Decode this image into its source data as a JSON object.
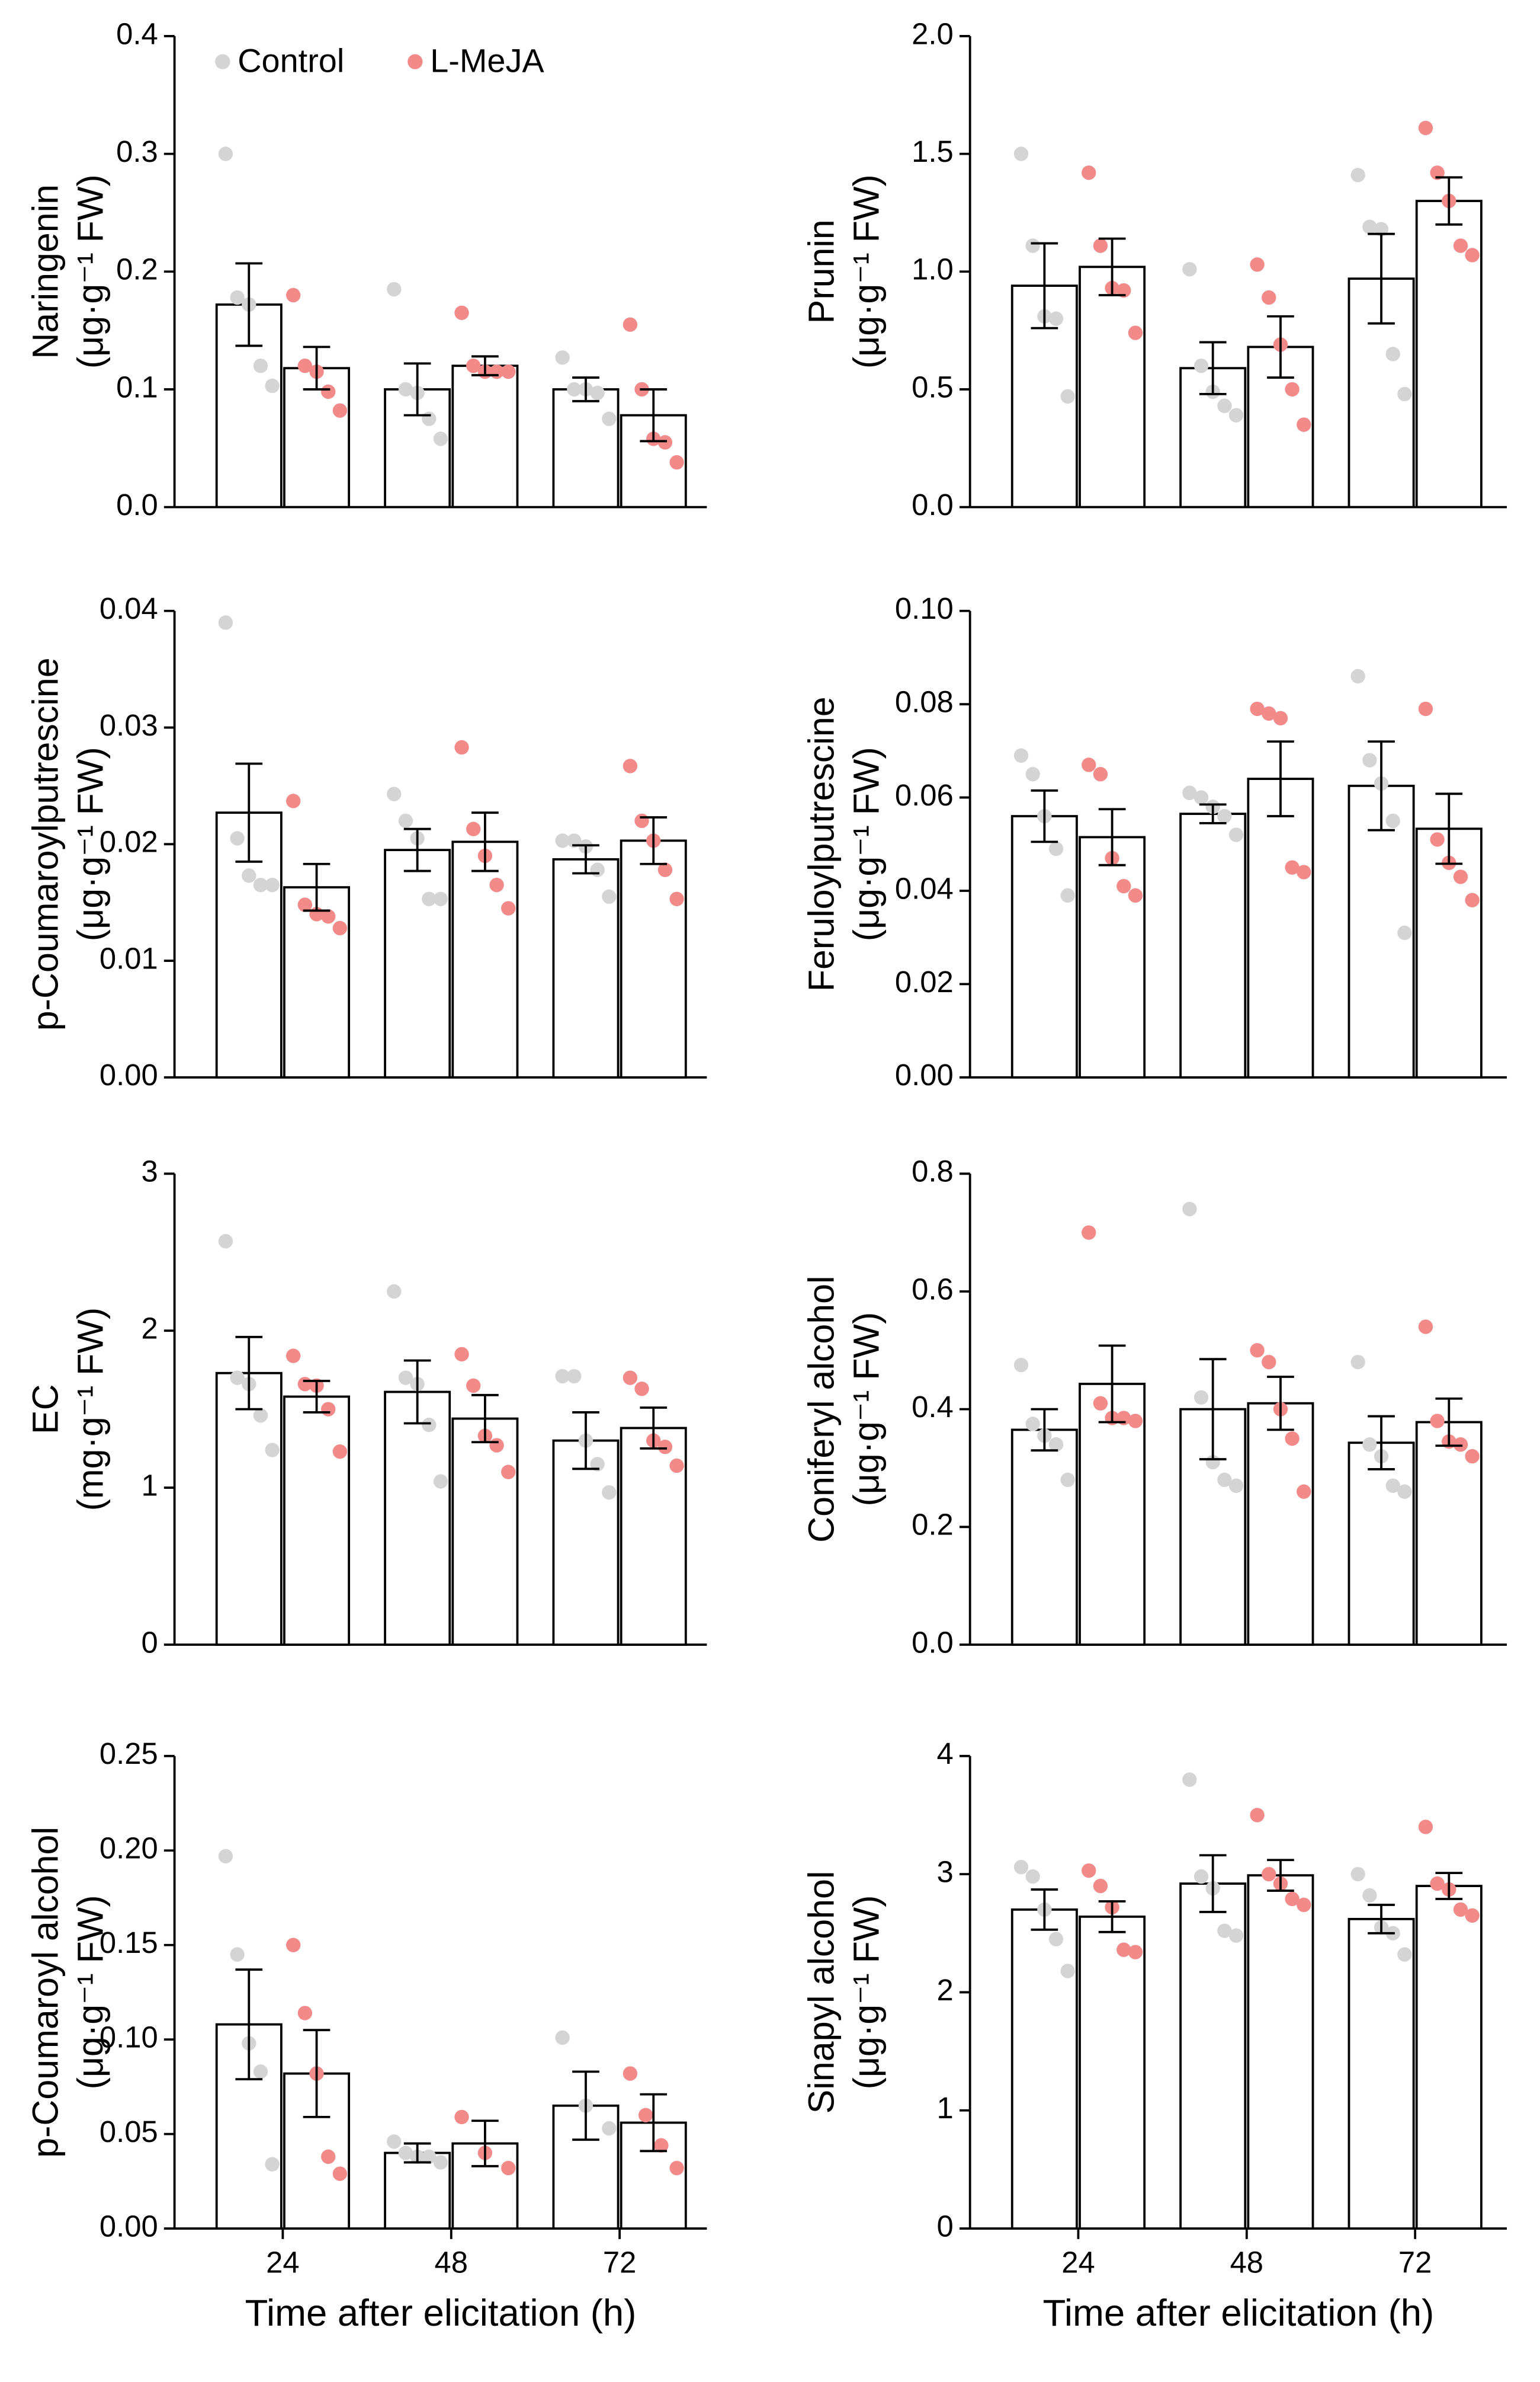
{
  "chart_data": [
    {
      "type": "bar",
      "ylabel": [
        "Naringenin",
        "(μg·g⁻¹ FW)"
      ],
      "categories": [
        null,
        null,
        null
      ],
      "ylim": [
        0,
        0.4
      ],
      "yticks": [
        {
          "value": 0,
          "label": "0.0"
        },
        0.1,
        0.2,
        0.3,
        0.4
      ],
      "legend": "upper left",
      "series": [
        {
          "name": "Control",
          "color": "#d4d4d4",
          "values": [
            0.172,
            0.1,
            0.1
          ],
          "errors": [
            0.035,
            0.022,
            0.01
          ],
          "points": [
            [
              0.3,
              0.178,
              0.172,
              0.12,
              0.103
            ],
            [
              0.185,
              0.1,
              0.097,
              0.075,
              0.058
            ],
            [
              0.127,
              0.1,
              0.1,
              0.097,
              0.075
            ]
          ]
        },
        {
          "name": "L-MeJA",
          "color": "#f28a8a",
          "values": [
            0.118,
            0.12,
            0.078
          ],
          "errors": [
            0.018,
            0.008,
            0.022
          ],
          "points": [
            [
              0.18,
              0.12,
              0.115,
              0.098,
              0.082
            ],
            [
              0.165,
              0.12,
              0.115,
              0.115,
              0.115
            ],
            [
              0.155,
              0.1,
              0.058,
              0.055,
              0.038
            ]
          ]
        }
      ]
    },
    {
      "type": "bar",
      "ylabel": [
        "Prunin",
        "(μg·g⁻¹ FW)"
      ],
      "categories": [
        null,
        null,
        null
      ],
      "ylim": [
        0,
        2.0
      ],
      "yticks": [
        {
          "value": 0,
          "label": "0.0"
        },
        0.5,
        {
          "value": 1,
          "label": "1.0"
        },
        1.5,
        {
          "value": 2,
          "label": "2.0"
        }
      ],
      "series": [
        {
          "color": "#d4d4d4",
          "values": [
            0.94,
            0.59,
            0.97
          ],
          "errors": [
            0.18,
            0.11,
            0.19
          ],
          "points": [
            [
              1.5,
              1.11,
              0.81,
              0.8,
              0.47
            ],
            [
              1.01,
              0.6,
              0.49,
              0.43,
              0.39
            ],
            [
              1.41,
              1.19,
              1.18,
              0.65,
              0.48
            ]
          ]
        },
        {
          "color": "#f28a8a",
          "values": [
            1.02,
            0.68,
            1.3
          ],
          "errors": [
            0.12,
            0.13,
            0.1
          ],
          "points": [
            [
              1.42,
              1.11,
              0.93,
              0.92,
              0.74
            ],
            [
              1.03,
              0.89,
              0.69,
              0.5,
              0.35
            ],
            [
              1.61,
              1.42,
              1.3,
              1.11,
              1.07
            ]
          ]
        }
      ]
    },
    {
      "type": "bar",
      "ylabel": [
        "p-Coumaroylputrescine",
        "(μg·g⁻¹ FW)"
      ],
      "categories": [
        null,
        null,
        null
      ],
      "ylim": [
        0,
        0.04
      ],
      "yticks": [
        {
          "value": 0,
          "label": "0.00"
        },
        0.01,
        0.02,
        0.03,
        0.04
      ],
      "series": [
        {
          "color": "#d4d4d4",
          "values": [
            0.0227,
            0.0195,
            0.0187
          ],
          "errors": [
            0.0042,
            0.0018,
            0.0012
          ],
          "points": [
            [
              0.039,
              0.0205,
              0.0173,
              0.0165,
              0.0165
            ],
            [
              0.0243,
              0.022,
              0.0205,
              0.0153,
              0.0153
            ],
            [
              0.0203,
              0.0203,
              0.0198,
              0.0178,
              0.0155
            ]
          ]
        },
        {
          "color": "#f28a8a",
          "values": [
            0.0163,
            0.0202,
            0.0203
          ],
          "errors": [
            0.002,
            0.0025,
            0.002
          ],
          "points": [
            [
              0.0237,
              0.0148,
              0.014,
              0.0138,
              0.0128
            ],
            [
              0.0283,
              0.0213,
              0.019,
              0.0165,
              0.0145
            ],
            [
              0.0267,
              0.022,
              0.0203,
              0.0178,
              0.0153
            ]
          ]
        }
      ]
    },
    {
      "type": "bar",
      "ylabel": [
        "Feruloylputrescine",
        "(μg·g⁻¹ FW)"
      ],
      "categories": [
        null,
        null,
        null
      ],
      "ylim": [
        0,
        0.1
      ],
      "yticks": [
        {
          "value": 0,
          "label": "0.00"
        },
        0.02,
        0.04,
        0.06,
        0.08,
        {
          "value": 0.1,
          "label": "0.10"
        }
      ],
      "series": [
        {
          "color": "#d4d4d4",
          "values": [
            0.056,
            0.0565,
            0.0625
          ],
          "errors": [
            0.0055,
            0.002,
            0.0095
          ],
          "points": [
            [
              0.069,
              0.065,
              0.056,
              0.049,
              0.039
            ],
            [
              0.061,
              0.06,
              0.058,
              0.056,
              0.052
            ],
            [
              0.086,
              0.068,
              0.063,
              0.055,
              0.031
            ]
          ]
        },
        {
          "color": "#f28a8a",
          "values": [
            0.0515,
            0.064,
            0.0533
          ],
          "errors": [
            0.006,
            0.008,
            0.0075
          ],
          "points": [
            [
              0.067,
              0.065,
              0.047,
              0.041,
              0.039
            ],
            [
              0.079,
              0.078,
              0.077,
              0.045,
              0.044
            ],
            [
              0.079,
              0.051,
              0.046,
              0.043,
              0.038
            ]
          ]
        }
      ]
    },
    {
      "type": "bar",
      "ylabel": [
        "EC",
        "(mg·g⁻¹ FW)"
      ],
      "categories": [
        null,
        null,
        null
      ],
      "ylim": [
        0,
        3
      ],
      "yticks": [
        0,
        1,
        2,
        3
      ],
      "series": [
        {
          "color": "#d4d4d4",
          "values": [
            1.73,
            1.61,
            1.3
          ],
          "errors": [
            0.23,
            0.2,
            0.18
          ],
          "points": [
            [
              2.57,
              1.7,
              1.66,
              1.46,
              1.24
            ],
            [
              2.25,
              1.7,
              1.66,
              1.4,
              1.04
            ],
            [
              1.71,
              1.71,
              1.3,
              1.15,
              0.97
            ]
          ]
        },
        {
          "color": "#f28a8a",
          "values": [
            1.58,
            1.44,
            1.38
          ],
          "errors": [
            0.1,
            0.15,
            0.13
          ],
          "points": [
            [
              1.84,
              1.66,
              1.65,
              1.5,
              1.23
            ],
            [
              1.85,
              1.65,
              1.33,
              1.27,
              1.1
            ],
            [
              1.7,
              1.63,
              1.3,
              1.26,
              1.14
            ]
          ]
        }
      ]
    },
    {
      "type": "bar",
      "ylabel": [
        "Coniferyl alcohol",
        "(μg·g⁻¹ FW)"
      ],
      "categories": [
        null,
        null,
        null
      ],
      "ylim": [
        0,
        0.8
      ],
      "yticks": [
        {
          "value": 0,
          "label": "0.0"
        },
        0.2,
        0.4,
        0.6,
        0.8
      ],
      "series": [
        {
          "color": "#d4d4d4",
          "values": [
            0.365,
            0.4,
            0.343
          ],
          "errors": [
            0.035,
            0.085,
            0.045
          ],
          "points": [
            [
              0.475,
              0.375,
              0.355,
              0.34,
              0.28
            ],
            [
              0.74,
              0.42,
              0.31,
              0.28,
              0.27
            ],
            [
              0.48,
              0.34,
              0.32,
              0.27,
              0.26
            ]
          ]
        },
        {
          "color": "#f28a8a",
          "values": [
            0.443,
            0.41,
            0.378
          ],
          "errors": [
            0.065,
            0.045,
            0.04
          ],
          "points": [
            [
              0.7,
              0.41,
              0.385,
              0.385,
              0.38
            ],
            [
              0.5,
              0.48,
              0.4,
              0.35,
              0.26
            ],
            [
              0.54,
              0.38,
              0.345,
              0.34,
              0.32
            ]
          ]
        }
      ]
    },
    {
      "type": "bar",
      "ylabel": [
        "p-Coumaroyl alcohol",
        "(μg·g⁻¹ FW)"
      ],
      "xlabel": "Time after elicitation (h)",
      "categories": [
        "24",
        "48",
        "72"
      ],
      "ylim": [
        0,
        0.25
      ],
      "yticks": [
        {
          "value": 0,
          "label": "0.00"
        },
        0.05,
        {
          "value": 0.1,
          "label": "0.10"
        },
        0.15,
        {
          "value": 0.2,
          "label": "0.20"
        },
        0.25
      ],
      "series": [
        {
          "color": "#d4d4d4",
          "values": [
            0.108,
            0.04,
            0.065
          ],
          "errors": [
            0.029,
            0.005,
            0.018
          ],
          "points": [
            [
              0.197,
              0.145,
              0.098,
              0.083,
              0.034
            ],
            [
              0.046,
              0.04,
              0.038,
              0.038,
              0.035
            ],
            [
              0.101,
              0.065,
              0.053
            ]
          ]
        },
        {
          "color": "#f28a8a",
          "values": [
            0.082,
            0.045,
            0.056
          ],
          "errors": [
            0.023,
            0.012,
            0.015
          ],
          "points": [
            [
              0.15,
              0.114,
              0.082,
              0.038,
              0.029
            ],
            [
              0.059,
              0.04,
              0.032
            ],
            [
              0.082,
              0.06,
              0.044,
              0.032
            ]
          ]
        }
      ]
    },
    {
      "type": "bar",
      "ylabel": [
        "Sinapyl alcohol",
        "(μg·g⁻¹ FW)"
      ],
      "xlabel": "Time after elicitation (h)",
      "categories": [
        "24",
        "48",
        "72"
      ],
      "ylim": [
        0,
        4
      ],
      "yticks": [
        0,
        1,
        2,
        3,
        4
      ],
      "series": [
        {
          "color": "#d4d4d4",
          "values": [
            2.7,
            2.92,
            2.62
          ],
          "errors": [
            0.17,
            0.24,
            0.12
          ],
          "points": [
            [
              3.06,
              2.98,
              2.7,
              2.45,
              2.18
            ],
            [
              3.8,
              2.98,
              2.88,
              2.52,
              2.48
            ],
            [
              3.0,
              2.82,
              2.55,
              2.5,
              2.32
            ]
          ]
        },
        {
          "color": "#f28a8a",
          "values": [
            2.64,
            2.99,
            2.9
          ],
          "errors": [
            0.13,
            0.13,
            0.11
          ],
          "points": [
            [
              3.03,
              2.9,
              2.72,
              2.36,
              2.34
            ],
            [
              3.5,
              3.0,
              2.92,
              2.79,
              2.74
            ],
            [
              3.4,
              2.92,
              2.87,
              2.7,
              2.65
            ]
          ]
        }
      ]
    }
  ]
}
